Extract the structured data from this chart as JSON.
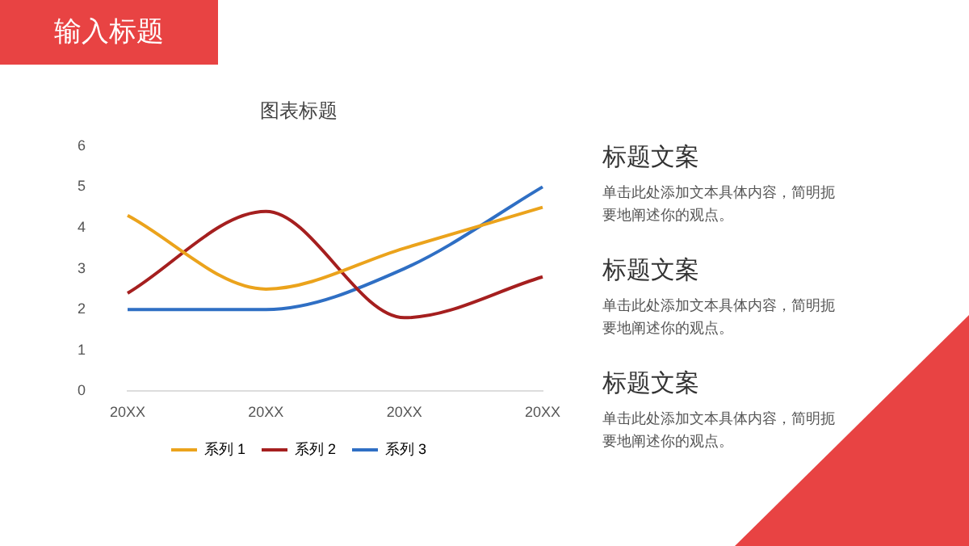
{
  "chart_data": {
    "type": "line",
    "title": "图表标题",
    "categories": [
      "20XX",
      "20XX",
      "20XX",
      "20XX"
    ],
    "series": [
      {
        "name": "系列 1",
        "color": "#eba31c",
        "values": [
          4.3,
          2.5,
          3.5,
          4.5
        ]
      },
      {
        "name": "系列 2",
        "color": "#a51f1f",
        "values": [
          2.4,
          4.4,
          1.8,
          2.8
        ]
      },
      {
        "name": "系列 3",
        "color": "#2f6fc4",
        "values": [
          2,
          2,
          3,
          5
        ]
      }
    ],
    "ylim": [
      0,
      6
    ],
    "yticks": [
      0,
      1,
      2,
      3,
      4,
      5,
      6
    ],
    "grid": false,
    "legend": "bottom",
    "marker": "none",
    "line_style": "solid",
    "annotations": [
      "输入标题",
      "标题文案",
      "单击此处添加文本具体内容，简明扼要地阐述你的观点。",
      "标题文案",
      "单击此处添加文本具体内容，简明扼要地阐述你的观点。",
      "标题文案",
      "单击此处添加文本具体内容，简明扼要地阐述你的观点。"
    ]
  }
}
